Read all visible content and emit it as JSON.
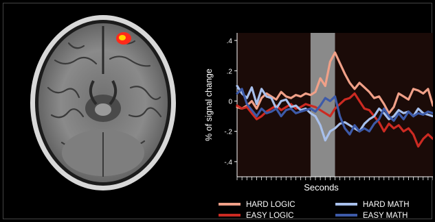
{
  "brain": {
    "activation_colors": [
      "#ff2a1a",
      "#ffd200"
    ]
  },
  "chart_data": {
    "type": "line",
    "xlabel": "Seconds",
    "ylabel": "% of signal change",
    "xlim": [
      0,
      40
    ],
    "ylim": [
      -0.5,
      0.45
    ],
    "yticks": [
      {
        "value": 0.4,
        "label": ".4"
      },
      {
        "value": 0.2,
        "label": ".2"
      },
      {
        "value": 0.0,
        "label": "0"
      },
      {
        "value": -0.2,
        "label": "-.2"
      },
      {
        "value": -0.4,
        "label": "-.4"
      }
    ],
    "highlight": {
      "x0": 15,
      "x1": 20,
      "color": "#8a8a8a"
    },
    "background": "#1b0b08",
    "legend_placement": "bottom",
    "series": [
      {
        "name": "HARD LOGIC",
        "color": "#f0a088",
        "x": [
          0,
          1,
          2,
          3,
          4,
          5,
          6,
          7,
          8,
          9,
          10,
          11,
          12,
          13,
          14,
          15,
          16,
          17,
          18,
          19,
          20,
          21,
          22,
          23,
          24,
          25,
          26,
          27,
          28,
          29,
          30,
          31,
          32,
          33,
          34,
          35,
          36,
          37,
          38,
          39,
          40
        ],
        "values": [
          -0.04,
          -0.05,
          -0.03,
          0.0,
          -0.05,
          0.02,
          0.05,
          0.03,
          0.01,
          0.06,
          0.03,
          0.02,
          0.04,
          0.03,
          0.05,
          0.04,
          0.06,
          0.15,
          0.1,
          0.26,
          0.32,
          0.25,
          0.18,
          0.12,
          0.08,
          0.12,
          0.09,
          0.06,
          0.02,
          0.03,
          -0.02,
          -0.08,
          -0.04,
          0.05,
          0.03,
          0.01,
          0.08,
          0.07,
          0.05,
          0.08,
          -0.03
        ]
      },
      {
        "name": "EASY LOGIC",
        "color": "#cc2a22",
        "x": [
          0,
          1,
          2,
          3,
          4,
          5,
          6,
          7,
          8,
          9,
          10,
          11,
          12,
          13,
          14,
          15,
          16,
          17,
          18,
          19,
          20,
          21,
          22,
          23,
          24,
          25,
          26,
          27,
          28,
          29,
          30,
          31,
          32,
          33,
          34,
          35,
          36,
          37,
          38,
          39,
          40
        ],
        "values": [
          -0.03,
          -0.05,
          -0.04,
          -0.08,
          -0.12,
          -0.1,
          -0.07,
          -0.05,
          -0.03,
          -0.06,
          -0.04,
          -0.02,
          -0.05,
          -0.04,
          -0.02,
          -0.03,
          -0.04,
          -0.06,
          -0.08,
          -0.1,
          -0.05,
          -0.02,
          0.01,
          0.02,
          0.05,
          0.0,
          -0.05,
          -0.06,
          -0.1,
          -0.14,
          -0.2,
          -0.15,
          -0.18,
          -0.16,
          -0.2,
          -0.18,
          -0.22,
          -0.3,
          -0.25,
          -0.22,
          -0.25
        ]
      },
      {
        "name": "HARD MATH",
        "color": "#a8c0ec",
        "x": [
          0,
          1,
          2,
          3,
          4,
          5,
          6,
          7,
          8,
          9,
          10,
          11,
          12,
          13,
          14,
          15,
          16,
          17,
          18,
          19,
          20,
          21,
          22,
          23,
          24,
          25,
          26,
          27,
          28,
          29,
          30,
          31,
          32,
          33,
          34,
          35,
          36,
          37,
          38,
          39,
          40
        ],
        "values": [
          0.1,
          0.05,
          0.02,
          0.09,
          -0.02,
          0.08,
          0.03,
          0.02,
          -0.05,
          0.0,
          0.01,
          -0.04,
          -0.03,
          -0.06,
          -0.05,
          -0.08,
          -0.1,
          -0.16,
          -0.26,
          -0.2,
          -0.18,
          -0.15,
          -0.14,
          -0.16,
          -0.18,
          -0.2,
          -0.15,
          -0.12,
          -0.1,
          -0.05,
          -0.08,
          -0.12,
          -0.1,
          -0.06,
          -0.08,
          -0.07,
          -0.1,
          -0.05,
          -0.08,
          -0.09,
          -0.1
        ]
      },
      {
        "name": "EASY MATH",
        "color": "#3d5aa8",
        "x": [
          0,
          1,
          2,
          3,
          4,
          5,
          6,
          7,
          8,
          9,
          10,
          11,
          12,
          13,
          14,
          15,
          16,
          17,
          18,
          19,
          20,
          21,
          22,
          23,
          24,
          25,
          26,
          27,
          28,
          29,
          30,
          31,
          32,
          33,
          34,
          35,
          36,
          37,
          38,
          39,
          40
        ],
        "values": [
          0.05,
          0.08,
          -0.02,
          -0.06,
          -0.1,
          -0.05,
          -0.08,
          -0.07,
          -0.05,
          -0.1,
          -0.06,
          -0.05,
          -0.08,
          -0.07,
          -0.06,
          -0.05,
          -0.07,
          -0.03,
          0.02,
          0.0,
          0.03,
          -0.1,
          -0.18,
          -0.22,
          -0.16,
          -0.2,
          -0.18,
          -0.2,
          -0.15,
          -0.12,
          -0.05,
          -0.1,
          -0.13,
          -0.08,
          -0.12,
          -0.07,
          -0.1,
          -0.08,
          -0.09,
          -0.07,
          -0.08
        ]
      }
    ]
  }
}
